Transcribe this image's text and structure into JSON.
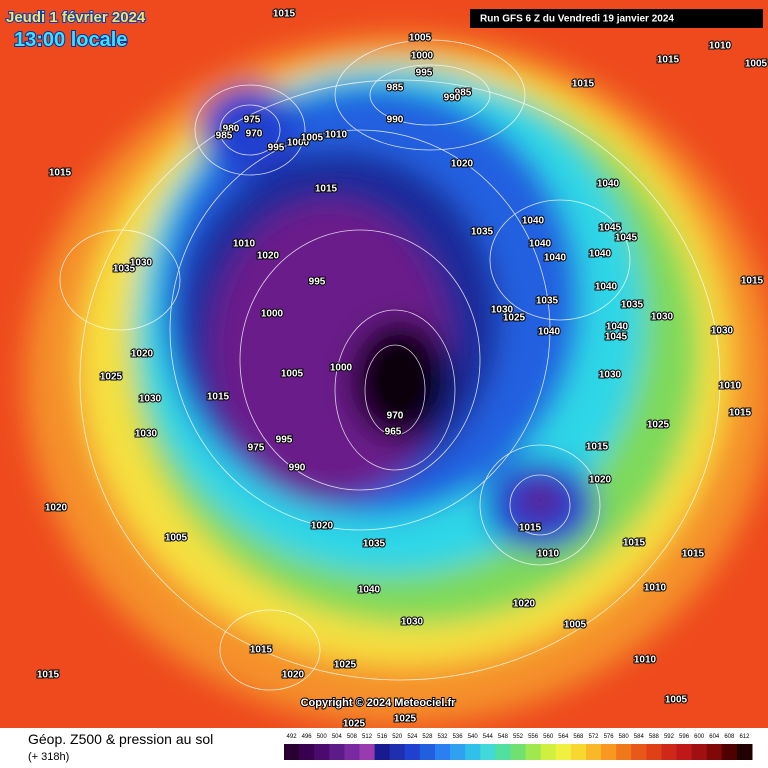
{
  "header": {
    "date": "Jeudi 1 février 2024",
    "time": "13:00 locale",
    "run": "Run GFS 6 Z du Vendredi 19 janvier 2024"
  },
  "footer": {
    "title": "Géop. Z500 & pression au sol",
    "lead": "(+ 318h)",
    "copyright": "Copyright © 2024 Meteociel.fr"
  },
  "colorbar": {
    "values": [
      492,
      496,
      500,
      504,
      508,
      512,
      516,
      520,
      524,
      528,
      532,
      536,
      540,
      544,
      548,
      552,
      556,
      560,
      564,
      568,
      572,
      576,
      580,
      584,
      588,
      592,
      596,
      600,
      604,
      608,
      612
    ],
    "colors": [
      "#2a0030",
      "#3a0050",
      "#4c0a6e",
      "#5e1a88",
      "#7a2aa0",
      "#9a3ab0",
      "#1a1a90",
      "#1e30b0",
      "#2040d0",
      "#2060e0",
      "#2a80f0",
      "#30a0f0",
      "#30c0e8",
      "#40d8d8",
      "#50e0a0",
      "#70e070",
      "#a0e850",
      "#d0f040",
      "#f0f040",
      "#f8d830",
      "#f8b828",
      "#f89820",
      "#f07818",
      "#e85818",
      "#e04018",
      "#d02818",
      "#c01818",
      "#a01010",
      "#800808",
      "#500000",
      "#200000"
    ]
  },
  "pressure_labels": [
    "1015",
    "1005",
    "1000",
    "995",
    "985",
    "985",
    "990",
    "990",
    "1015",
    "1010",
    "1005",
    "1015",
    "975",
    "980",
    "970",
    "985",
    "995",
    "1000",
    "1005",
    "1010",
    "1015",
    "1020",
    "1015",
    "1040",
    "1040",
    "1035",
    "1045",
    "1045",
    "1040",
    "1040",
    "1040",
    "1010",
    "1020",
    "1035",
    "1030",
    "995",
    "1000",
    "1030",
    "1025",
    "1035",
    "1040",
    "1040",
    "1035",
    "1030",
    "1040",
    "1045",
    "1020",
    "1005",
    "1000",
    "1025",
    "1030",
    "1015",
    "1030",
    "1030",
    "995",
    "990",
    "975",
    "970",
    "965",
    "1015",
    "1020",
    "1015",
    "1010",
    "1015",
    "1015",
    "1020",
    "1005",
    "1020",
    "1035",
    "1040",
    "1030",
    "1020",
    "1005",
    "1010",
    "1015",
    "1020",
    "1025",
    "1015",
    "1010",
    "1005",
    "1025",
    "1025",
    "1010",
    "1015",
    "1015",
    "1030",
    "1025"
  ]
}
